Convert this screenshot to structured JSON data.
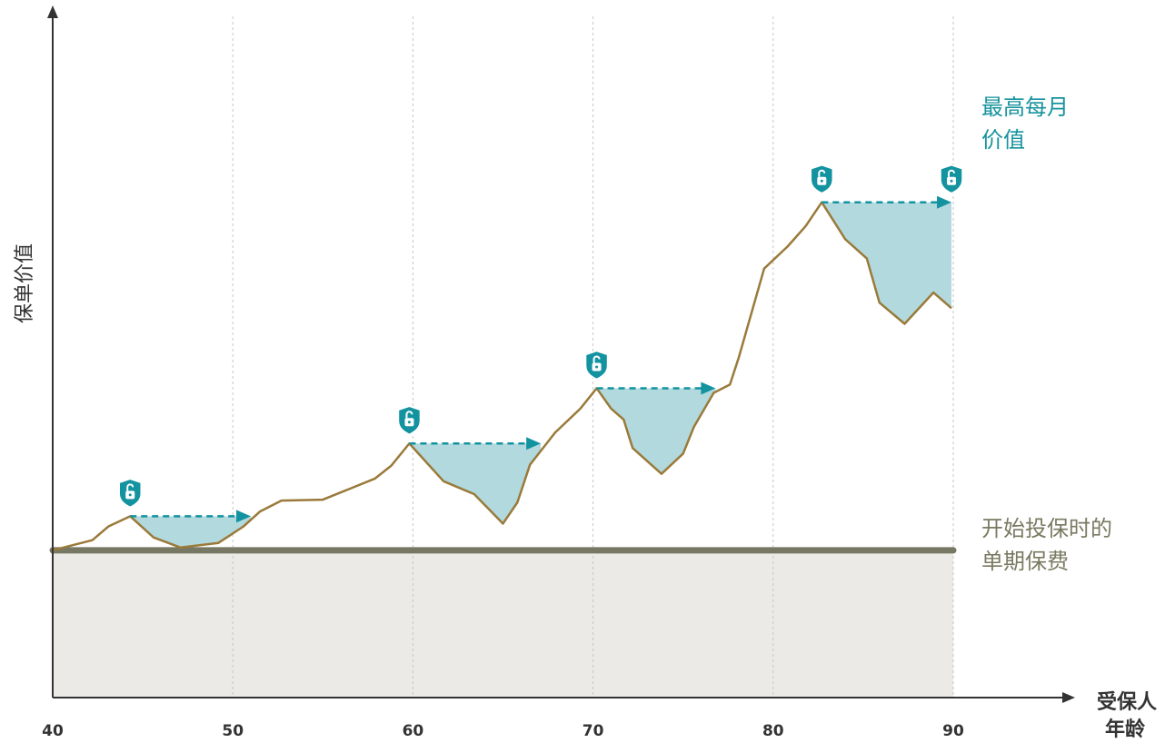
{
  "chart_data": {
    "type": "line",
    "ylabel": "保单价值",
    "xlabel_lines": [
      "受保人",
      "年龄"
    ],
    "xlim": [
      40,
      90
    ],
    "ylim": [
      -16,
      58
    ],
    "x_ticks": [
      40,
      50,
      60,
      70,
      80,
      90
    ],
    "x_tick_labels": [
      "40",
      "50",
      "60",
      "70",
      "80",
      "90"
    ],
    "grid": "vertical dashed at x ticks",
    "premium_value": 0,
    "annotations": {
      "peak_label_lines": [
        "最高每月",
        "价值"
      ],
      "baseline_label_lines": [
        "开始投保时的",
        "单期保费"
      ]
    },
    "series": [
      {
        "x": [
          40,
          42.2,
          43.1,
          44.3,
          45.6,
          47.1,
          49.2,
          50.6,
          51.5,
          52.7,
          55.0,
          57.9,
          58.8,
          59.8,
          61.7,
          63.4,
          65.0,
          65.8,
          66.5,
          67.9,
          69.3,
          70.2,
          71.0,
          71.7,
          72.2,
          73.8,
          75.0,
          75.6,
          76.7,
          77.6,
          78.1,
          79.5,
          80.8,
          81.8,
          82.7,
          84.0,
          85.2,
          85.9,
          87.3,
          88.9,
          89.9
        ],
        "y": [
          0,
          1.1,
          2.6,
          3.7,
          1.4,
          0.3,
          0.8,
          2.6,
          4.2,
          5.4,
          5.5,
          7.8,
          9.2,
          11.6,
          7.5,
          6.1,
          2.9,
          5.2,
          9.3,
          12.8,
          15.4,
          17.6,
          15.4,
          14.2,
          11.1,
          8.3,
          10.5,
          13.4,
          17.1,
          18.0,
          21.0,
          30.6,
          33.0,
          35.2,
          37.8,
          33.8,
          31.7,
          26.9,
          24.6,
          28.0,
          26.3
        ]
      }
    ],
    "lock_periods": [
      {
        "peak_x": 44.3,
        "peak_y": 3.7,
        "end_x": 51.0
      },
      {
        "peak_x": 59.8,
        "peak_y": 11.6,
        "end_x": 67.1
      },
      {
        "peak_x": 70.2,
        "peak_y": 17.6,
        "end_x": 76.8
      },
      {
        "peak_x": 82.7,
        "peak_y": 37.8,
        "end_x": 89.9
      }
    ],
    "colors": {
      "line": "#9a7a3a",
      "baseline": "#767864",
      "shade_below": "#ebeae6",
      "lock_fill": "#b2d9de",
      "lock_arrow": "#1393a0",
      "grid": "#c6c6c6",
      "axis": "#333333"
    }
  }
}
